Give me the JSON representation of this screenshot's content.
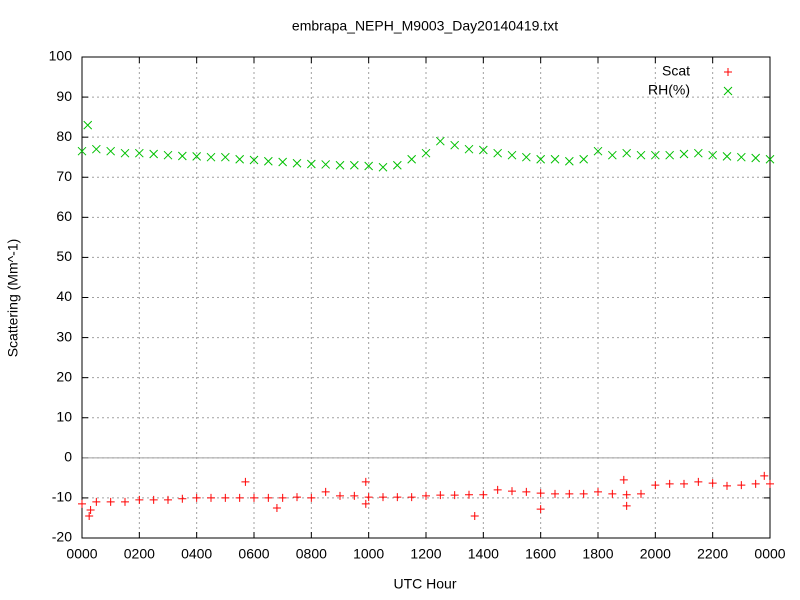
{
  "chart_data": {
    "type": "scatter",
    "title": "embrapa_NEPH_M9003_Day20140419.txt",
    "xlabel": "UTC Hour",
    "ylabel": "Scattering (Mm^-1)",
    "xlim": [
      0,
      24
    ],
    "ylim": [
      -20,
      100
    ],
    "xticks": [
      {
        "value": 0,
        "label": "0000"
      },
      {
        "value": 2,
        "label": "0200"
      },
      {
        "value": 4,
        "label": "0400"
      },
      {
        "value": 6,
        "label": "0600"
      },
      {
        "value": 8,
        "label": "0800"
      },
      {
        "value": 10,
        "label": "1000"
      },
      {
        "value": 12,
        "label": "1200"
      },
      {
        "value": 14,
        "label": "1400"
      },
      {
        "value": 16,
        "label": "1600"
      },
      {
        "value": 18,
        "label": "1800"
      },
      {
        "value": 20,
        "label": "2000"
      },
      {
        "value": 22,
        "label": "2200"
      },
      {
        "value": 24,
        "label": "0000"
      }
    ],
    "yticks": [
      -20,
      -10,
      0,
      10,
      20,
      30,
      40,
      50,
      60,
      70,
      80,
      90,
      100
    ],
    "grid": true,
    "legend": "top-right",
    "series": [
      {
        "name": "Scat",
        "color": "#ff0000",
        "marker": "plus",
        "x": [
          0,
          0.25,
          0.3,
          0.5,
          1,
          1.5,
          2,
          2.5,
          3,
          3.5,
          4,
          4.5,
          5,
          5.5,
          5.7,
          6,
          6.5,
          6.8,
          7,
          7.5,
          8,
          8.5,
          9,
          9.5,
          9.9,
          9.9,
          10,
          10.5,
          11,
          11.5,
          12,
          12.5,
          13,
          13.5,
          13.7,
          14,
          14.5,
          15,
          15.5,
          16,
          16,
          16.5,
          17,
          17.5,
          18,
          18.5,
          18.9,
          19,
          19,
          19.5,
          20,
          20.5,
          21,
          21.5,
          22,
          22.5,
          23,
          23.5,
          23.8,
          24
        ],
        "values": [
          -11.5,
          -14.5,
          -13,
          -11,
          -11,
          -11,
          -10.5,
          -10.5,
          -10.5,
          -10.2,
          -10,
          -10,
          -10,
          -10,
          -6,
          -10,
          -10,
          -12.5,
          -10,
          -9.8,
          -10,
          -8.5,
          -9.5,
          -9.5,
          -6,
          -11.5,
          -9.8,
          -9.8,
          -9.8,
          -9.8,
          -9.5,
          -9.3,
          -9.3,
          -9.2,
          -14.5,
          -9.2,
          -8,
          -8.3,
          -8.5,
          -8.8,
          -12.8,
          -9,
          -9,
          -9,
          -8.5,
          -9,
          -5.5,
          -9.2,
          -12,
          -9,
          -6.8,
          -6.5,
          -6.5,
          -6,
          -6.3,
          -7,
          -6.8,
          -6.5,
          -4.5,
          -6.5
        ]
      },
      {
        "name": "RH(%)",
        "color": "#00c000",
        "marker": "cross",
        "x": [
          0,
          0.2,
          0.5,
          1,
          1.5,
          2,
          2.5,
          3,
          3.5,
          4,
          4.5,
          5,
          5.5,
          6,
          6.5,
          7,
          7.5,
          8,
          8.5,
          9,
          9.5,
          10,
          10.5,
          11,
          11.5,
          12,
          12.5,
          13,
          13.5,
          14,
          14.5,
          15,
          15.5,
          16,
          16.5,
          17,
          17.5,
          18,
          18.5,
          19,
          19.5,
          20,
          20.5,
          21,
          21.5,
          22,
          22.5,
          23,
          23.5,
          24
        ],
        "values": [
          76.5,
          83,
          77,
          76.5,
          76,
          76,
          75.8,
          75.5,
          75.3,
          75.2,
          75,
          75,
          74.5,
          74.3,
          74,
          73.8,
          73.5,
          73.3,
          73.2,
          73,
          73,
          72.8,
          72.5,
          73,
          74.5,
          76,
          79,
          78,
          77,
          76.8,
          76,
          75.5,
          75,
          74.5,
          74.5,
          74,
          74.5,
          76.5,
          75.5,
          76,
          75.5,
          75.5,
          75.5,
          75.8,
          76,
          75.5,
          75.2,
          75,
          74.8,
          74.5
        ]
      }
    ]
  }
}
